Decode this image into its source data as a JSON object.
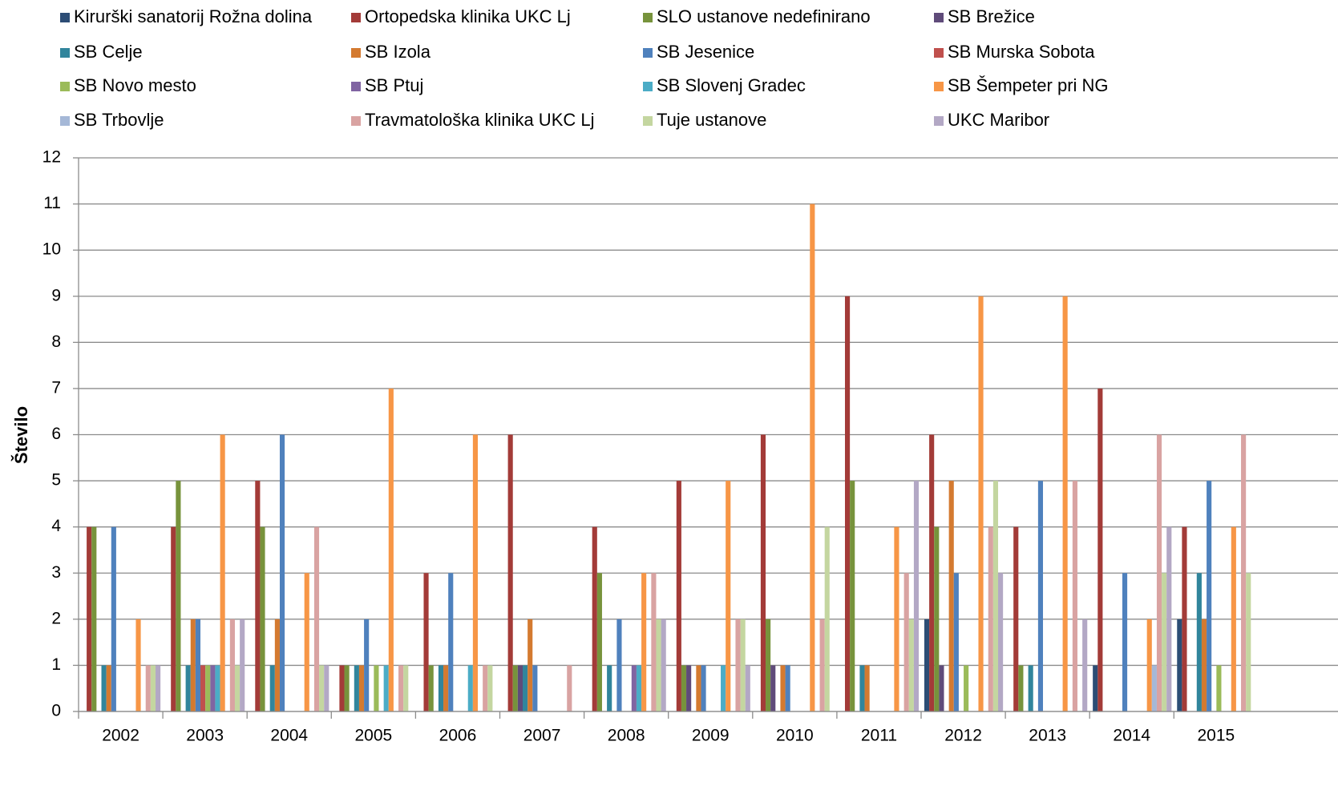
{
  "chart_data": {
    "type": "bar",
    "y_label": "Število",
    "categories": [
      "2002",
      "2003",
      "2004",
      "2005",
      "2006",
      "2007",
      "2008",
      "2009",
      "2010",
      "2011",
      "2012",
      "2013",
      "2014",
      "2015"
    ],
    "ylim": [
      0,
      12
    ],
    "yticks": [
      0,
      1,
      2,
      3,
      4,
      5,
      6,
      7,
      8,
      9,
      10,
      11,
      12
    ],
    "grid": true,
    "series": [
      {
        "name": "Kirurški sanatorij Rožna dolina",
        "color": "#2c4d75",
        "values": [
          0,
          0,
          0,
          0,
          0,
          0,
          0,
          0,
          0,
          0,
          2,
          0,
          1,
          2
        ]
      },
      {
        "name": "Ortopedska klinika UKC Lj",
        "color": "#a33b38",
        "values": [
          4,
          4,
          5,
          1,
          3,
          6,
          4,
          5,
          6,
          9,
          6,
          4,
          7,
          4
        ]
      },
      {
        "name": "SLO ustanove nedefinirano",
        "color": "#77933c",
        "values": [
          4,
          5,
          4,
          1,
          1,
          1,
          3,
          1,
          2,
          5,
          4,
          1,
          0,
          0
        ]
      },
      {
        "name": "SB Brežice",
        "color": "#5f4b7a",
        "values": [
          0,
          0,
          0,
          0,
          0,
          1,
          0,
          1,
          1,
          0,
          1,
          0,
          0,
          0
        ]
      },
      {
        "name": "SB Celje",
        "color": "#31859c",
        "values": [
          1,
          1,
          1,
          1,
          1,
          1,
          1,
          0,
          0,
          1,
          0,
          1,
          0,
          3
        ]
      },
      {
        "name": "SB Izola",
        "color": "#d47a30",
        "values": [
          1,
          2,
          2,
          1,
          1,
          2,
          0,
          1,
          1,
          1,
          5,
          0,
          0,
          2
        ]
      },
      {
        "name": "SB Jesenice",
        "color": "#4f81bd",
        "values": [
          4,
          2,
          6,
          2,
          3,
          1,
          2,
          1,
          1,
          0,
          3,
          5,
          3,
          5
        ]
      },
      {
        "name": "SB Murska Sobota",
        "color": "#c0504d",
        "values": [
          0,
          1,
          0,
          0,
          0,
          0,
          0,
          0,
          0,
          0,
          0,
          0,
          0,
          0
        ]
      },
      {
        "name": "SB Novo mesto",
        "color": "#9bbb59",
        "values": [
          0,
          1,
          0,
          1,
          0,
          0,
          0,
          0,
          0,
          0,
          1,
          0,
          0,
          1
        ]
      },
      {
        "name": "SB Ptuj",
        "color": "#8064a2",
        "values": [
          0,
          1,
          0,
          0,
          0,
          0,
          1,
          0,
          0,
          0,
          0,
          0,
          0,
          0
        ]
      },
      {
        "name": "SB Slovenj Gradec",
        "color": "#4bacc6",
        "values": [
          0,
          1,
          0,
          1,
          1,
          0,
          1,
          1,
          0,
          0,
          0,
          0,
          0,
          0
        ]
      },
      {
        "name": "SB Šempeter pri NG",
        "color": "#f79646",
        "values": [
          2,
          6,
          3,
          7,
          6,
          0,
          3,
          5,
          11,
          4,
          9,
          9,
          2,
          4
        ]
      },
      {
        "name": "SB Trbovlje",
        "color": "#a5b8d7",
        "values": [
          0,
          0,
          0,
          0,
          0,
          0,
          0,
          0,
          0,
          0,
          0,
          0,
          1,
          0
        ]
      },
      {
        "name": "Travmatološka klinika UKC Lj",
        "color": "#d9a3a2",
        "values": [
          1,
          2,
          4,
          1,
          1,
          1,
          3,
          2,
          2,
          3,
          4,
          5,
          6,
          6
        ]
      },
      {
        "name": "Tuje ustanove",
        "color": "#c4d6a0",
        "values": [
          1,
          1,
          1,
          1,
          1,
          0,
          2,
          2,
          4,
          2,
          5,
          0,
          3,
          3
        ]
      },
      {
        "name": "UKC Maribor",
        "color": "#b3a8c5",
        "values": [
          1,
          2,
          1,
          0,
          0,
          0,
          2,
          1,
          0,
          5,
          3,
          2,
          4,
          0
        ]
      }
    ]
  }
}
